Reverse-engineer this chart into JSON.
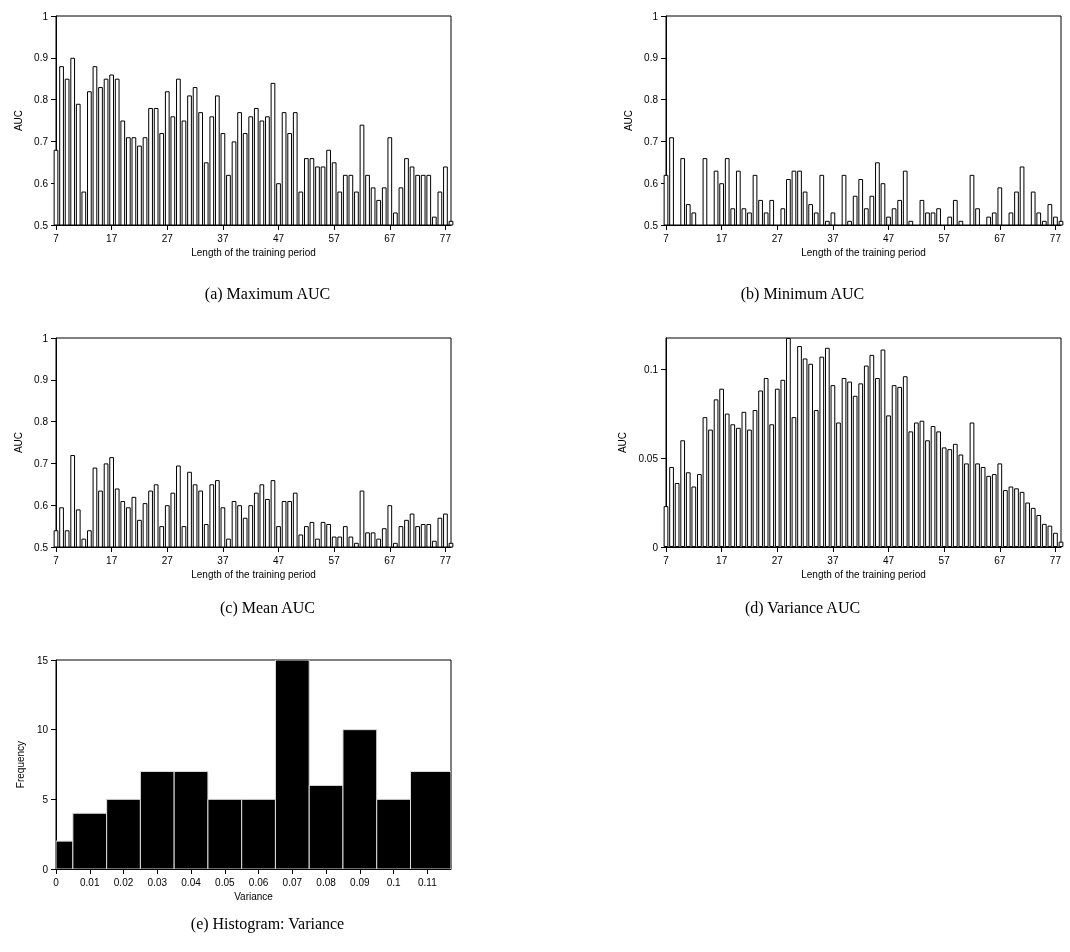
{
  "chart_data": [
    {
      "type": "bar",
      "title": "(a) Maximum AUC",
      "xlabel": "Length of the training period",
      "ylabel": "AUC",
      "color": "#ffffff",
      "xlim": [
        7,
        78
      ],
      "xticks": [
        7,
        17,
        27,
        37,
        47,
        57,
        67,
        77
      ],
      "ylim": [
        0.5,
        1
      ],
      "yticks": [
        0.5,
        0.6,
        0.7,
        0.8,
        0.9,
        1
      ],
      "x": [
        7,
        8,
        9,
        10,
        11,
        12,
        13,
        14,
        15,
        16,
        17,
        18,
        19,
        20,
        21,
        22,
        23,
        24,
        25,
        26,
        27,
        28,
        29,
        30,
        31,
        32,
        33,
        34,
        35,
        36,
        37,
        38,
        39,
        40,
        41,
        42,
        43,
        44,
        45,
        46,
        47,
        48,
        49,
        50,
        51,
        52,
        53,
        54,
        55,
        56,
        57,
        58,
        59,
        60,
        61,
        62,
        63,
        64,
        65,
        66,
        67,
        68,
        69,
        70,
        71,
        72,
        73,
        74,
        75,
        76,
        77,
        78
      ],
      "values": [
        0.68,
        0.88,
        0.85,
        0.9,
        0.79,
        0.58,
        0.82,
        0.88,
        0.83,
        0.85,
        0.86,
        0.85,
        0.75,
        0.71,
        0.71,
        0.69,
        0.71,
        0.78,
        0.78,
        0.72,
        0.82,
        0.76,
        0.85,
        0.75,
        0.81,
        0.83,
        0.77,
        0.65,
        0.76,
        0.81,
        0.72,
        0.62,
        0.7,
        0.77,
        0.72,
        0.76,
        0.78,
        0.75,
        0.76,
        0.84,
        0.6,
        0.77,
        0.72,
        0.77,
        0.58,
        0.66,
        0.66,
        0.64,
        0.64,
        0.68,
        0.65,
        0.58,
        0.62,
        0.62,
        0.58,
        0.74,
        0.62,
        0.59,
        0.56,
        0.59,
        0.71,
        0.53,
        0.59,
        0.66,
        0.64,
        0.62,
        0.62,
        0.62,
        0.52,
        0.58,
        0.64,
        0.51
      ]
    },
    {
      "type": "bar",
      "title": "(b) Minimum AUC",
      "xlabel": "Length of the training period",
      "ylabel": "AUC",
      "color": "#ffffff",
      "xlim": [
        7,
        78
      ],
      "xticks": [
        7,
        17,
        27,
        37,
        47,
        57,
        67,
        77
      ],
      "ylim": [
        0.5,
        1
      ],
      "yticks": [
        0.5,
        0.6,
        0.7,
        0.8,
        0.9,
        1
      ],
      "x": [
        7,
        8,
        9,
        10,
        11,
        12,
        13,
        14,
        15,
        16,
        17,
        18,
        19,
        20,
        21,
        22,
        23,
        24,
        25,
        26,
        27,
        28,
        29,
        30,
        31,
        32,
        33,
        34,
        35,
        36,
        37,
        38,
        39,
        40,
        41,
        42,
        43,
        44,
        45,
        46,
        47,
        48,
        49,
        50,
        51,
        52,
        53,
        54,
        55,
        56,
        57,
        58,
        59,
        60,
        61,
        62,
        63,
        64,
        65,
        66,
        67,
        68,
        69,
        70,
        71,
        72,
        73,
        74,
        75,
        76,
        77,
        78
      ],
      "values": [
        0.62,
        0.71,
        0.5,
        0.66,
        0.55,
        0.53,
        0.5,
        0.66,
        0.5,
        0.63,
        0.6,
        0.66,
        0.54,
        0.63,
        0.54,
        0.53,
        0.62,
        0.56,
        0.53,
        0.56,
        0.5,
        0.54,
        0.61,
        0.63,
        0.63,
        0.58,
        0.55,
        0.53,
        0.62,
        0.51,
        0.53,
        0.5,
        0.62,
        0.51,
        0.57,
        0.61,
        0.54,
        0.57,
        0.65,
        0.6,
        0.52,
        0.54,
        0.56,
        0.63,
        0.51,
        0.5,
        0.56,
        0.53,
        0.53,
        0.54,
        0.5,
        0.52,
        0.56,
        0.51,
        0.5,
        0.62,
        0.54,
        0.5,
        0.52,
        0.53,
        0.59,
        0.5,
        0.53,
        0.58,
        0.64,
        0.5,
        0.58,
        0.53,
        0.51,
        0.55,
        0.52,
        0.51
      ]
    },
    {
      "type": "bar",
      "title": "(c) Mean AUC",
      "xlabel": "Length of the training period",
      "ylabel": "AUC",
      "color": "#ffffff",
      "xlim": [
        7,
        78
      ],
      "xticks": [
        7,
        17,
        27,
        37,
        47,
        57,
        67,
        77
      ],
      "ylim": [
        0.5,
        1
      ],
      "yticks": [
        0.5,
        0.6,
        0.7,
        0.8,
        0.9,
        1
      ],
      "x": [
        7,
        8,
        9,
        10,
        11,
        12,
        13,
        14,
        15,
        16,
        17,
        18,
        19,
        20,
        21,
        22,
        23,
        24,
        25,
        26,
        27,
        28,
        29,
        30,
        31,
        32,
        33,
        34,
        35,
        36,
        37,
        38,
        39,
        40,
        41,
        42,
        43,
        44,
        45,
        46,
        47,
        48,
        49,
        50,
        51,
        52,
        53,
        54,
        55,
        56,
        57,
        58,
        59,
        60,
        61,
        62,
        63,
        64,
        65,
        66,
        67,
        68,
        69,
        70,
        71,
        72,
        73,
        74,
        75,
        76,
        77,
        78
      ],
      "values": [
        0.54,
        0.595,
        0.54,
        0.72,
        0.59,
        0.52,
        0.54,
        0.69,
        0.635,
        0.7,
        0.715,
        0.64,
        0.61,
        0.595,
        0.62,
        0.565,
        0.605,
        0.635,
        0.65,
        0.55,
        0.6,
        0.63,
        0.695,
        0.55,
        0.68,
        0.65,
        0.635,
        0.555,
        0.65,
        0.66,
        0.595,
        0.52,
        0.61,
        0.6,
        0.57,
        0.6,
        0.63,
        0.65,
        0.615,
        0.66,
        0.55,
        0.61,
        0.61,
        0.63,
        0.53,
        0.55,
        0.56,
        0.52,
        0.56,
        0.555,
        0.525,
        0.525,
        0.55,
        0.525,
        0.51,
        0.635,
        0.535,
        0.535,
        0.52,
        0.545,
        0.6,
        0.51,
        0.55,
        0.565,
        0.58,
        0.55,
        0.555,
        0.555,
        0.515,
        0.57,
        0.58,
        0.51
      ]
    },
    {
      "type": "bar",
      "title": "(d) Variance AUC",
      "xlabel": "Length of the training period",
      "ylabel": "AUC",
      "color": "#ffffff",
      "xlim": [
        7,
        78
      ],
      "xticks": [
        7,
        17,
        27,
        37,
        47,
        57,
        67,
        77
      ],
      "ylim": [
        0,
        0.1175
      ],
      "yticks": [
        0,
        0.05,
        0.1
      ],
      "x": [
        7,
        8,
        9,
        10,
        11,
        12,
        13,
        14,
        15,
        16,
        17,
        18,
        19,
        20,
        21,
        22,
        23,
        24,
        25,
        26,
        27,
        28,
        29,
        30,
        31,
        32,
        33,
        34,
        35,
        36,
        37,
        38,
        39,
        40,
        41,
        42,
        43,
        44,
        45,
        46,
        47,
        48,
        49,
        50,
        51,
        52,
        53,
        54,
        55,
        56,
        57,
        58,
        59,
        60,
        61,
        62,
        63,
        64,
        65,
        66,
        67,
        68,
        69,
        70,
        71,
        72,
        73,
        74,
        75,
        76,
        77,
        78
      ],
      "values": [
        0.023,
        0.045,
        0.036,
        0.06,
        0.042,
        0.034,
        0.041,
        0.073,
        0.066,
        0.083,
        0.089,
        0.075,
        0.069,
        0.067,
        0.076,
        0.066,
        0.077,
        0.088,
        0.095,
        0.069,
        0.089,
        0.094,
        0.1175,
        0.073,
        0.113,
        0.106,
        0.103,
        0.077,
        0.107,
        0.112,
        0.091,
        0.07,
        0.095,
        0.093,
        0.085,
        0.092,
        0.102,
        0.108,
        0.095,
        0.111,
        0.074,
        0.091,
        0.09,
        0.096,
        0.065,
        0.07,
        0.071,
        0.06,
        0.068,
        0.065,
        0.056,
        0.055,
        0.058,
        0.052,
        0.047,
        0.07,
        0.047,
        0.045,
        0.04,
        0.041,
        0.047,
        0.032,
        0.034,
        0.033,
        0.031,
        0.025,
        0.022,
        0.018,
        0.013,
        0.012,
        0.008,
        0.003
      ]
    },
    {
      "type": "histogram",
      "title": "(e) Histogram: Variance",
      "xlabel": "Variance",
      "ylabel": "Frequency",
      "color": "#000000",
      "xlim": [
        0,
        0.117
      ],
      "xticks": [
        0,
        0.01,
        0.02,
        0.03,
        0.04,
        0.05,
        0.06,
        0.07,
        0.08,
        0.09,
        0.1,
        0.11
      ],
      "ylim": [
        0,
        15
      ],
      "yticks": [
        0,
        5,
        10,
        15
      ],
      "bins": [
        0,
        0.005,
        0.015,
        0.025,
        0.035,
        0.045,
        0.055,
        0.065,
        0.075,
        0.085,
        0.095,
        0.105,
        0.117
      ],
      "values": [
        2,
        4,
        5,
        7,
        7,
        5,
        5,
        15,
        6,
        10,
        5,
        7
      ]
    }
  ]
}
